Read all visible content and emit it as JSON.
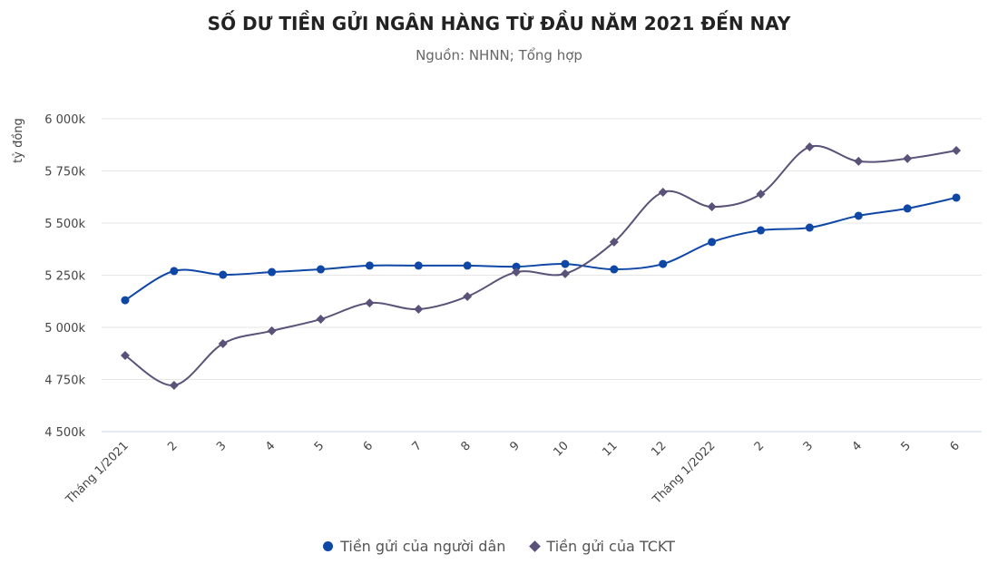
{
  "chart_data": {
    "type": "line",
    "title": "SỐ DƯ TIỀN GỬI NGÂN HÀNG TỪ ĐẦU NĂM 2021 ĐẾN NAY",
    "subtitle": "Nguồn: NHNN; Tổng hợp",
    "ylabel": "tỷ đồng",
    "xlabel": "",
    "ylim": [
      4500,
      6000
    ],
    "yticks": [
      4500,
      4750,
      5000,
      5250,
      5500,
      5750,
      6000
    ],
    "ytick_labels": [
      "4 500k",
      "4 750k",
      "5 000k",
      "5 250k",
      "5 500k",
      "5 750k",
      "6 000k"
    ],
    "categories": [
      "Tháng 1/2021",
      "2",
      "3",
      "4",
      "5",
      "6",
      "7",
      "8",
      "9",
      "10",
      "11",
      "12",
      "Tháng 1/2022",
      "2",
      "3",
      "4",
      "5",
      "6"
    ],
    "grid": true,
    "legend_position": "bottom",
    "series": [
      {
        "name": "Tiền gửi của người dân",
        "color": "#0f47a6",
        "marker": "circle",
        "values": [
          5130,
          5270,
          5252,
          5265,
          5278,
          5296,
          5296,
          5296,
          5291,
          5304,
          5278,
          5304,
          5409,
          5465,
          5478,
          5535,
          5570,
          5622
        ]
      },
      {
        "name": "Tiền gửi của TCKT",
        "color": "#5a5278",
        "marker": "diamond",
        "values": [
          4865,
          4722,
          4922,
          4983,
          5039,
          5117,
          5087,
          5148,
          5265,
          5257,
          5409,
          5648,
          5578,
          5639,
          5865,
          5796,
          5809,
          5848
        ]
      }
    ]
  }
}
